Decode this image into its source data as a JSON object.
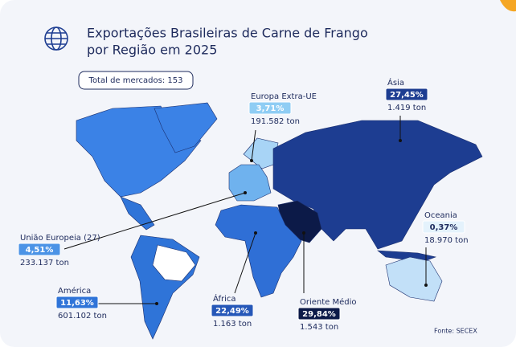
{
  "header": {
    "title_lines": [
      "Exportações Brasileiras de Carne de Frango",
      "por Região em 2025"
    ],
    "badge": "Total de mercados: 153"
  },
  "regions": [
    {
      "name": "Europa Extra-UE",
      "share": "3,71%",
      "volume": "191.582 ton",
      "color": "#8fcdf4"
    },
    {
      "name": "Ásia",
      "share": "27,45%",
      "volume": "1.419 ton",
      "color": "#1d3d91"
    },
    {
      "name": "Oceania",
      "share": "0,37%",
      "volume": "18.970 ton",
      "color": "#e4f2fc"
    },
    {
      "name": "União Europeia (27)",
      "share": "4,51%",
      "volume": "233.137 ton",
      "color": "#4b93e6"
    },
    {
      "name": "América",
      "share": "11,63%",
      "volume": "601.102 ton",
      "color": "#2f74d8"
    },
    {
      "name": "África",
      "share": "22,49%",
      "volume": "1.163 ton",
      "color": "#2557b8"
    },
    {
      "name": "Oriente Médio",
      "share": "29,84%",
      "volume": "1.543 ton",
      "color": "#0c1a48"
    }
  ],
  "source": "Fonte: SECEX"
}
